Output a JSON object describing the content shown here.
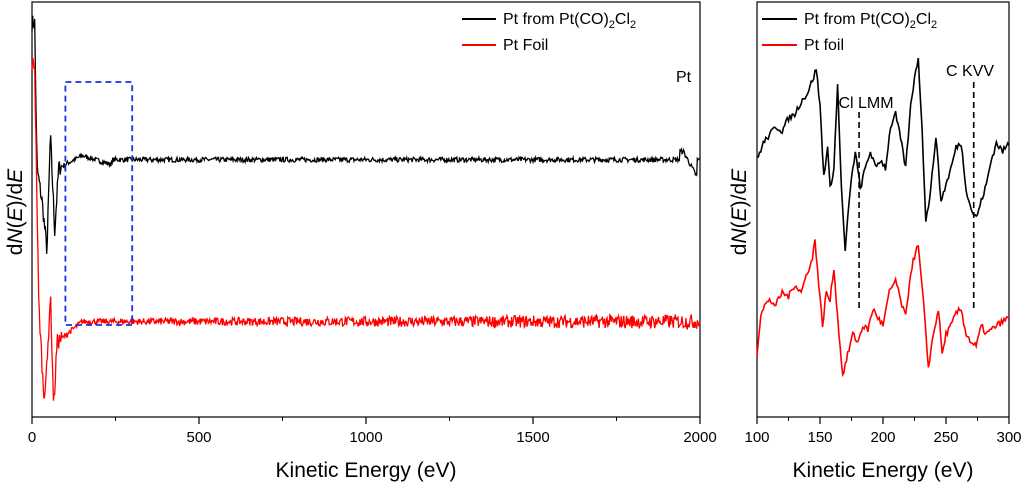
{
  "chart_data": [
    {
      "type": "line",
      "panel": "left",
      "xlabel": "Kinetic Energy (eV)",
      "ylabel_prefix": "d",
      "ylabel_N": "N",
      "ylabel_mid1": "(",
      "ylabel_E1": "E",
      "ylabel_mid2": ")/d",
      "ylabel_E2": "E",
      "xlim": [
        0,
        2000
      ],
      "xticks": [
        "0",
        "500",
        "1000",
        "1500",
        "2000"
      ],
      "legend": [
        {
          "label_main": "Pt from Pt(CO)",
          "label_sub": "2",
          "label_tail": "Cl",
          "label_sub2": "2",
          "color": "#000000"
        },
        {
          "label_main": "Pt Foil",
          "label_sub": "",
          "label_tail": "",
          "label_sub2": "",
          "color": "#ff0000"
        }
      ],
      "annotation": "Pt",
      "highlight_box_x": [
        100,
        300
      ],
      "series": [
        {
          "name": "Pt from Pt(CO)2Cl2",
          "color": "#000000",
          "baseline": 0.62,
          "features": [
            [
              8,
              0.95
            ],
            [
              15,
              0.6
            ],
            [
              30,
              0.52
            ],
            [
              45,
              0.4
            ],
            [
              55,
              0.68
            ],
            [
              68,
              0.45
            ],
            [
              80,
              0.6
            ],
            [
              150,
              0.63
            ],
            [
              230,
              0.61
            ],
            [
              1950,
              0.64
            ],
            [
              1990,
              0.58
            ]
          ]
        },
        {
          "name": "Pt Foil",
          "color": "#ff0000",
          "baseline": 0.23,
          "features": [
            [
              8,
              0.85
            ],
            [
              20,
              0.28
            ],
            [
              35,
              0.05
            ],
            [
              45,
              0.12
            ],
            [
              55,
              0.3
            ],
            [
              65,
              0.02
            ],
            [
              75,
              0.18
            ],
            [
              150,
              0.23
            ]
          ]
        }
      ]
    },
    {
      "type": "line",
      "panel": "right",
      "xlabel": "Kinetic Energy (eV)",
      "ylabel_prefix": "d",
      "ylabel_N": "N",
      "ylabel_mid1": "(",
      "ylabel_E1": "E",
      "ylabel_mid2": ")/d",
      "ylabel_E2": "E",
      "xlim": [
        100,
        300
      ],
      "xticks": [
        "100",
        "150",
        "200",
        "250",
        "300"
      ],
      "legend": [
        {
          "label_main": "Pt from Pt(CO)",
          "label_sub": "2",
          "label_tail": "Cl",
          "label_sub2": "2",
          "color": "#000000"
        },
        {
          "label_main": "Pt foil",
          "label_sub": "",
          "label_tail": "",
          "label_sub2": "",
          "color": "#ff0000"
        }
      ],
      "annotations": [
        {
          "label": "Cl LMM",
          "x": 181
        },
        {
          "label": "C KVV",
          "x": 272
        }
      ],
      "series": [
        {
          "name": "Pt from Pt(CO)2Cl2",
          "color": "#000000",
          "points": [
            [
              100,
              0.62
            ],
            [
              105,
              0.66
            ],
            [
              110,
              0.68
            ],
            [
              115,
              0.7
            ],
            [
              120,
              0.69
            ],
            [
              125,
              0.72
            ],
            [
              130,
              0.73
            ],
            [
              135,
              0.76
            ],
            [
              140,
              0.78
            ],
            [
              145,
              0.82
            ],
            [
              147,
              0.84
            ],
            [
              150,
              0.75
            ],
            [
              153,
              0.58
            ],
            [
              156,
              0.65
            ],
            [
              158,
              0.55
            ],
            [
              161,
              0.6
            ],
            [
              164,
              0.8
            ],
            [
              167,
              0.55
            ],
            [
              170,
              0.4
            ],
            [
              174,
              0.55
            ],
            [
              178,
              0.64
            ],
            [
              182,
              0.55
            ],
            [
              186,
              0.6
            ],
            [
              190,
              0.64
            ],
            [
              194,
              0.6
            ],
            [
              198,
              0.62
            ],
            [
              202,
              0.6
            ],
            [
              206,
              0.7
            ],
            [
              210,
              0.73
            ],
            [
              214,
              0.67
            ],
            [
              218,
              0.6
            ],
            [
              222,
              0.75
            ],
            [
              226,
              0.84
            ],
            [
              228,
              0.86
            ],
            [
              231,
              0.7
            ],
            [
              234,
              0.47
            ],
            [
              238,
              0.55
            ],
            [
              242,
              0.68
            ],
            [
              246,
              0.52
            ],
            [
              250,
              0.56
            ],
            [
              254,
              0.6
            ],
            [
              258,
              0.65
            ],
            [
              262,
              0.66
            ],
            [
              266,
              0.55
            ],
            [
              270,
              0.5
            ],
            [
              274,
              0.48
            ],
            [
              278,
              0.52
            ],
            [
              282,
              0.56
            ],
            [
              286,
              0.62
            ],
            [
              290,
              0.66
            ],
            [
              295,
              0.64
            ],
            [
              300,
              0.66
            ]
          ]
        },
        {
          "name": "Pt foil",
          "color": "#ff0000",
          "points": [
            [
              100,
              0.15
            ],
            [
              103,
              0.25
            ],
            [
              106,
              0.27
            ],
            [
              110,
              0.28
            ],
            [
              115,
              0.27
            ],
            [
              120,
              0.3
            ],
            [
              125,
              0.29
            ],
            [
              130,
              0.32
            ],
            [
              135,
              0.3
            ],
            [
              140,
              0.35
            ],
            [
              144,
              0.38
            ],
            [
              146,
              0.43
            ],
            [
              149,
              0.32
            ],
            [
              152,
              0.22
            ],
            [
              155,
              0.3
            ],
            [
              158,
              0.28
            ],
            [
              161,
              0.36
            ],
            [
              164,
              0.24
            ],
            [
              168,
              0.1
            ],
            [
              172,
              0.15
            ],
            [
              176,
              0.2
            ],
            [
              180,
              0.18
            ],
            [
              184,
              0.22
            ],
            [
              188,
              0.21
            ],
            [
              192,
              0.26
            ],
            [
              196,
              0.24
            ],
            [
              200,
              0.22
            ],
            [
              205,
              0.3
            ],
            [
              210,
              0.33
            ],
            [
              214,
              0.28
            ],
            [
              218,
              0.24
            ],
            [
              222,
              0.35
            ],
            [
              226,
              0.4
            ],
            [
              228,
              0.41
            ],
            [
              232,
              0.28
            ],
            [
              236,
              0.12
            ],
            [
              240,
              0.2
            ],
            [
              244,
              0.26
            ],
            [
              247,
              0.15
            ],
            [
              250,
              0.2
            ],
            [
              254,
              0.22
            ],
            [
              258,
              0.25
            ],
            [
              262,
              0.26
            ],
            [
              266,
              0.2
            ],
            [
              270,
              0.18
            ],
            [
              274,
              0.17
            ],
            [
              278,
              0.22
            ],
            [
              282,
              0.2
            ],
            [
              286,
              0.21
            ],
            [
              290,
              0.22
            ],
            [
              295,
              0.23
            ],
            [
              300,
              0.24
            ]
          ]
        }
      ]
    }
  ]
}
